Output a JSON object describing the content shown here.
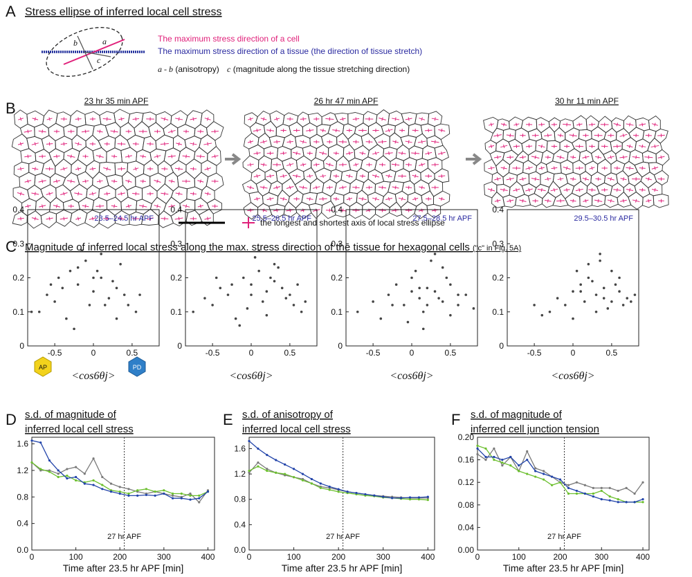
{
  "panel_a": {
    "label": "A",
    "title": "Stress ellipse of inferred local cell stress",
    "ellipse_labels": [
      "a",
      "b",
      "c"
    ],
    "cell_direction": "The maximum stress direction of a cell",
    "tissue_direction": "The maximum stress direction of a tissue (the direction of tissue stretch)",
    "anisotropy_var": "a - b",
    "anisotropy_text": "(anisotropy)",
    "magnitude_var": "c",
    "magnitude_text": "(magnitude along the tissue stretching direction)"
  },
  "panel_b": {
    "label": "B",
    "times": [
      "23 hr 35 min APF",
      "26 hr 47 min APF",
      "30 hr 11 min APF"
    ],
    "legend": "the longest and shortest axis of local stress ellipse"
  },
  "panel_c": {
    "label": "C",
    "title": "Magnitude of inferred local stress along the max. stress direction of the tissue for hexagonal cells",
    "note": "(\"c\" in Fig. 5A)",
    "icons": [
      "AP",
      "PD"
    ]
  },
  "chart_data": [
    {
      "type": "scatter",
      "title": "23.5–24.5 hr APF",
      "x_label": "<cos6θj>",
      "color": "#444444",
      "x": [
        -0.6,
        -0.45,
        -0.3,
        -0.2,
        -0.1,
        0,
        0.1,
        0.2,
        0.3,
        0.45,
        -0.7,
        -0.5,
        -0.35,
        -0.15,
        0.05,
        0.15,
        0.25,
        0.4,
        0.55,
        -0.25,
        -0.05,
        0.1,
        0.35,
        -0.4,
        -0.55,
        0.6,
        -0.8,
        0.0,
        -0.2,
        0.3
      ],
      "y": [
        0.15,
        0.2,
        0.22,
        0.18,
        0.25,
        0.16,
        0.2,
        0.14,
        0.17,
        0.12,
        0.1,
        0.13,
        0.08,
        0.28,
        0.22,
        0.12,
        0.19,
        0.15,
        0.1,
        0.05,
        0.12,
        0.27,
        0.24,
        0.17,
        0.18,
        0.15,
        0.1,
        0.2,
        0.23,
        0.08
      ],
      "xlim": [
        -0.85,
        0.85
      ],
      "ylim": [
        0,
        0.4
      ],
      "xticks": [
        -0.5,
        0,
        0.5
      ],
      "yticks": [
        0,
        0.1,
        0.2,
        0.3,
        0.4
      ]
    },
    {
      "type": "scatter",
      "title": "25.5–26.5 hr APF",
      "x_label": "<cos6θj>",
      "color": "#444444",
      "x": [
        -0.6,
        -0.4,
        -0.3,
        -0.1,
        0,
        0.1,
        0.2,
        0.3,
        0.45,
        0.55,
        -0.75,
        -0.5,
        -0.2,
        0.05,
        0.15,
        0.25,
        0.35,
        0.5,
        0.65,
        -0.25,
        -0.05,
        0.1,
        0.4,
        0.2,
        -0.45,
        0.7,
        0.0,
        0.3,
        -0.15,
        0.6
      ],
      "y": [
        0.14,
        0.17,
        0.15,
        0.2,
        0.18,
        0.22,
        0.16,
        0.19,
        0.14,
        0.12,
        0.1,
        0.12,
        0.08,
        0.26,
        0.13,
        0.2,
        0.23,
        0.15,
        0.1,
        0.18,
        0.11,
        0.28,
        0.17,
        0.09,
        0.2,
        0.13,
        0.15,
        0.24,
        0.06,
        0.18
      ],
      "xlim": [
        -0.85,
        0.85
      ],
      "ylim": [
        0,
        0.4
      ],
      "xticks": [
        -0.5,
        0,
        0.5
      ],
      "yticks": [
        0,
        0.1,
        0.2,
        0.3,
        0.4
      ]
    },
    {
      "type": "scatter",
      "title": "27.5–28.5 hr APF",
      "x_label": "<cos6θj>",
      "color": "#444444",
      "x": [
        -0.5,
        -0.3,
        -0.1,
        0,
        0.1,
        0.2,
        0.3,
        0.4,
        0.5,
        0.6,
        -0.7,
        -0.4,
        -0.2,
        0.05,
        0.15,
        0.25,
        0.35,
        0.45,
        0.7,
        0.8,
        -0.05,
        0.1,
        0.3,
        0.5,
        0.2,
        0.0,
        0.4,
        0.6,
        -0.25,
        0.15
      ],
      "y": [
        0.13,
        0.15,
        0.12,
        0.2,
        0.14,
        0.17,
        0.16,
        0.13,
        0.18,
        0.12,
        0.1,
        0.08,
        0.18,
        0.22,
        0.1,
        0.25,
        0.14,
        0.2,
        0.15,
        0.11,
        0.07,
        0.17,
        0.27,
        0.09,
        0.12,
        0.16,
        0.23,
        0.15,
        0.12,
        0.05
      ],
      "xlim": [
        -0.85,
        0.85
      ],
      "ylim": [
        0,
        0.4
      ],
      "xticks": [
        -0.5,
        0,
        0.5
      ],
      "yticks": [
        0,
        0.1,
        0.2,
        0.3,
        0.4
      ]
    },
    {
      "type": "scatter",
      "title": "29.5–30.5 hr APF",
      "x_label": "<cos6θj>",
      "color": "#444444",
      "x": [
        -0.5,
        -0.2,
        0,
        0.1,
        0.2,
        0.3,
        0.4,
        0.5,
        0.6,
        0.7,
        -0.3,
        -0.1,
        0.05,
        0.15,
        0.25,
        0.35,
        0.45,
        0.55,
        0.65,
        0.8,
        0.0,
        0.2,
        0.4,
        0.6,
        0.3,
        0.1,
        0.5,
        0.75,
        -0.4,
        0.35
      ],
      "y": [
        0.12,
        0.14,
        0.16,
        0.18,
        0.2,
        0.15,
        0.17,
        0.13,
        0.16,
        0.14,
        0.1,
        0.12,
        0.22,
        0.13,
        0.19,
        0.25,
        0.11,
        0.18,
        0.12,
        0.15,
        0.08,
        0.24,
        0.14,
        0.2,
        0.1,
        0.16,
        0.22,
        0.13,
        0.09,
        0.27
      ],
      "xlim": [
        -0.85,
        0.85
      ],
      "ylim": [
        0,
        0.4
      ],
      "xticks": [
        -0.5,
        0,
        0.5
      ],
      "yticks": [
        0,
        0.1,
        0.2,
        0.3,
        0.4
      ]
    },
    {
      "type": "line",
      "panel_label": "D",
      "title": [
        "s.d. of magnitude of",
        "inferred local cell stress"
      ],
      "x_label": "Time after 23.5 hr APF [min]",
      "annotation": "27 hr APF",
      "vline": 210,
      "x": [
        0,
        20,
        40,
        60,
        80,
        100,
        120,
        140,
        160,
        180,
        200,
        220,
        240,
        260,
        280,
        300,
        320,
        340,
        360,
        380,
        400
      ],
      "series": [
        {
          "color": "#7a7a7a",
          "values": [
            1.32,
            1.2,
            1.2,
            1.15,
            1.22,
            1.25,
            1.15,
            1.38,
            1.1,
            1.0,
            0.95,
            0.92,
            0.88,
            0.85,
            0.88,
            0.85,
            0.82,
            0.8,
            0.85,
            0.72,
            0.9
          ]
        },
        {
          "color": "#6cbf2e",
          "values": [
            1.32,
            1.22,
            1.18,
            1.1,
            1.12,
            1.05,
            1.02,
            1.05,
            0.98,
            0.9,
            0.88,
            0.85,
            0.9,
            0.92,
            0.88,
            0.9,
            0.85,
            0.85,
            0.82,
            0.82,
            0.88
          ]
        },
        {
          "color": "#2244aa",
          "values": [
            1.65,
            1.62,
            1.35,
            1.2,
            1.08,
            1.1,
            1.0,
            0.98,
            0.92,
            0.88,
            0.85,
            0.82,
            0.82,
            0.83,
            0.82,
            0.85,
            0.78,
            0.78,
            0.76,
            0.78,
            0.88
          ]
        }
      ],
      "xlim": [
        0,
        415
      ],
      "ylim": [
        0,
        1.7
      ],
      "xticks": [
        0,
        100,
        200,
        300,
        400
      ],
      "yticks": [
        {
          "value": 0,
          "label": "0.0"
        },
        0.4,
        0.8,
        1.2,
        1.6
      ]
    },
    {
      "type": "line",
      "panel_label": "E",
      "title": [
        "s.d. of anisotropy of",
        "inferred local cell stress"
      ],
      "x_label": "Time after 23.5 hr APF [min]",
      "annotation": "27 hr APF",
      "vline": 210,
      "x": [
        0,
        20,
        40,
        60,
        80,
        100,
        120,
        140,
        160,
        180,
        200,
        220,
        240,
        260,
        280,
        300,
        320,
        340,
        360,
        380,
        400
      ],
      "series": [
        {
          "color": "#7a7a7a",
          "values": [
            1.22,
            1.38,
            1.28,
            1.22,
            1.18,
            1.15,
            1.12,
            1.05,
            1.0,
            0.98,
            0.95,
            0.92,
            0.9,
            0.88,
            0.86,
            0.85,
            0.84,
            0.83,
            0.82,
            0.82,
            0.82
          ]
        },
        {
          "color": "#6cbf2e",
          "values": [
            1.25,
            1.32,
            1.25,
            1.22,
            1.2,
            1.15,
            1.1,
            1.05,
            0.98,
            0.95,
            0.92,
            0.9,
            0.88,
            0.86,
            0.85,
            0.83,
            0.82,
            0.81,
            0.8,
            0.8,
            0.79
          ]
        },
        {
          "color": "#2244aa",
          "values": [
            1.72,
            1.6,
            1.5,
            1.42,
            1.35,
            1.28,
            1.2,
            1.12,
            1.05,
            1.0,
            0.96,
            0.92,
            0.9,
            0.88,
            0.86,
            0.84,
            0.82,
            0.82,
            0.83,
            0.83,
            0.84
          ]
        }
      ],
      "xlim": [
        0,
        415
      ],
      "ylim": [
        0,
        1.78
      ],
      "xticks": [
        0,
        100,
        200,
        300,
        400
      ],
      "yticks": [
        {
          "value": 0,
          "label": "0.0"
        },
        0.4,
        0.8,
        1.2,
        1.6
      ]
    },
    {
      "type": "line",
      "panel_label": "F",
      "title": [
        "s.d. of magnitude of",
        "inferred cell junction tension"
      ],
      "x_label": "Time after 23.5 hr APF [min]",
      "annotation": "27 hr APF",
      "vline": 210,
      "x": [
        0,
        20,
        40,
        60,
        80,
        100,
        120,
        140,
        160,
        180,
        200,
        220,
        240,
        260,
        280,
        300,
        320,
        340,
        360,
        380,
        400
      ],
      "series": [
        {
          "color": "#7a7a7a",
          "values": [
            0.17,
            0.16,
            0.18,
            0.15,
            0.165,
            0.14,
            0.175,
            0.145,
            0.14,
            0.13,
            0.12,
            0.115,
            0.12,
            0.115,
            0.11,
            0.11,
            0.11,
            0.105,
            0.11,
            0.1,
            0.12
          ]
        },
        {
          "color": "#6cbf2e",
          "values": [
            0.185,
            0.18,
            0.16,
            0.155,
            0.15,
            0.14,
            0.135,
            0.13,
            0.125,
            0.115,
            0.12,
            0.1,
            0.1,
            0.1,
            0.1,
            0.105,
            0.095,
            0.09,
            0.085,
            0.085,
            0.085
          ]
        },
        {
          "color": "#2244aa",
          "values": [
            0.18,
            0.165,
            0.165,
            0.16,
            0.165,
            0.15,
            0.16,
            0.14,
            0.135,
            0.13,
            0.125,
            0.11,
            0.105,
            0.1,
            0.095,
            0.09,
            0.088,
            0.085,
            0.085,
            0.085,
            0.09
          ]
        }
      ],
      "xlim": [
        0,
        415
      ],
      "ylim": [
        0,
        0.2
      ],
      "xticks": [
        0,
        100,
        200,
        300,
        400
      ],
      "yticks": [
        {
          "value": 0,
          "label": "0.00"
        },
        0.04,
        0.08,
        0.12,
        0.16,
        {
          "value": 0.2,
          "label": "0.20"
        }
      ]
    }
  ]
}
